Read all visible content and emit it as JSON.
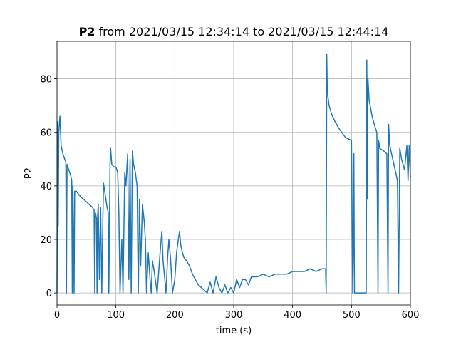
{
  "chart_data": {
    "type": "line",
    "title_bold": "P2",
    "title": "from 2021/03/15 12:34:14 to 2021/03/15 12:44:14",
    "xlabel": "time (s)",
    "ylabel": "P2",
    "color": "#1f77b4",
    "grid": true,
    "xlim": [
      0,
      600
    ],
    "xticks": [
      0,
      100,
      200,
      300,
      400,
      500,
      600
    ],
    "ylim": [
      -4.5,
      94
    ],
    "yticks": [
      0,
      20,
      40,
      60,
      80
    ],
    "x": [
      0,
      1,
      2,
      3,
      5,
      7,
      10,
      13,
      15,
      16,
      17,
      20,
      23,
      25,
      26,
      27,
      29,
      30,
      33,
      36,
      40,
      45,
      50,
      55,
      60,
      63,
      64,
      65,
      67,
      68,
      69,
      70,
      72,
      74,
      76,
      78,
      79,
      81,
      83,
      85,
      87,
      88,
      90,
      91,
      93,
      97,
      100,
      103,
      105,
      107,
      110,
      112,
      115,
      117,
      120,
      122,
      124,
      126,
      128,
      130,
      133,
      136,
      138,
      140,
      142,
      145,
      148,
      150,
      152,
      155,
      158,
      160,
      162,
      165,
      170,
      175,
      178,
      180,
      183,
      185,
      188,
      190,
      193,
      196,
      200,
      203,
      206,
      208,
      210,
      213,
      216,
      220,
      225,
      230,
      235,
      240,
      245,
      250,
      255,
      260,
      265,
      270,
      275,
      280,
      285,
      290,
      295,
      300,
      305,
      310,
      315,
      320,
      325,
      330,
      340,
      350,
      360,
      370,
      380,
      390,
      400,
      410,
      420,
      430,
      440,
      450,
      456,
      457,
      458,
      459,
      462,
      466,
      472,
      480,
      490,
      500,
      502,
      503,
      504,
      505,
      508,
      512,
      520,
      525,
      526,
      527,
      528,
      530,
      535,
      540,
      543,
      545,
      546,
      548,
      555,
      560,
      562,
      563,
      565,
      570,
      575,
      578,
      580,
      582,
      585,
      590,
      594,
      596,
      598,
      600
    ],
    "values": [
      0,
      64,
      25,
      60,
      66,
      55,
      52,
      50,
      49,
      0,
      48,
      46,
      44,
      42,
      0,
      40,
      0,
      38,
      38,
      37,
      36,
      35,
      34,
      33,
      32,
      31,
      0,
      30,
      28,
      0,
      29,
      33,
      5,
      32,
      0,
      30,
      41,
      38,
      35,
      32,
      30,
      0,
      48,
      54,
      48,
      47,
      47,
      45,
      30,
      0,
      20,
      0,
      45,
      40,
      52,
      5,
      50,
      0,
      53,
      48,
      45,
      40,
      0,
      35,
      10,
      33,
      27,
      20,
      0,
      15,
      5,
      0,
      12,
      8,
      0,
      15,
      23,
      12,
      5,
      0,
      14,
      20,
      12,
      0,
      5,
      15,
      20,
      23,
      18,
      15,
      13,
      12,
      10,
      7,
      5,
      3,
      2,
      1,
      0,
      4,
      0,
      6,
      2,
      0,
      3,
      0,
      2,
      0,
      5,
      2,
      5,
      5,
      3,
      6,
      6,
      7,
      6,
      7,
      7,
      7,
      8,
      8,
      8,
      9,
      8,
      9,
      9,
      0,
      89,
      75,
      70,
      67,
      64,
      61,
      58,
      57,
      0,
      16,
      52,
      0,
      0,
      0,
      0,
      0,
      87,
      35,
      80,
      72,
      66,
      62,
      60,
      0,
      57,
      54,
      53,
      52,
      0,
      63,
      55,
      50,
      45,
      42,
      0,
      54,
      50,
      46,
      55,
      42,
      55,
      43
    ]
  }
}
